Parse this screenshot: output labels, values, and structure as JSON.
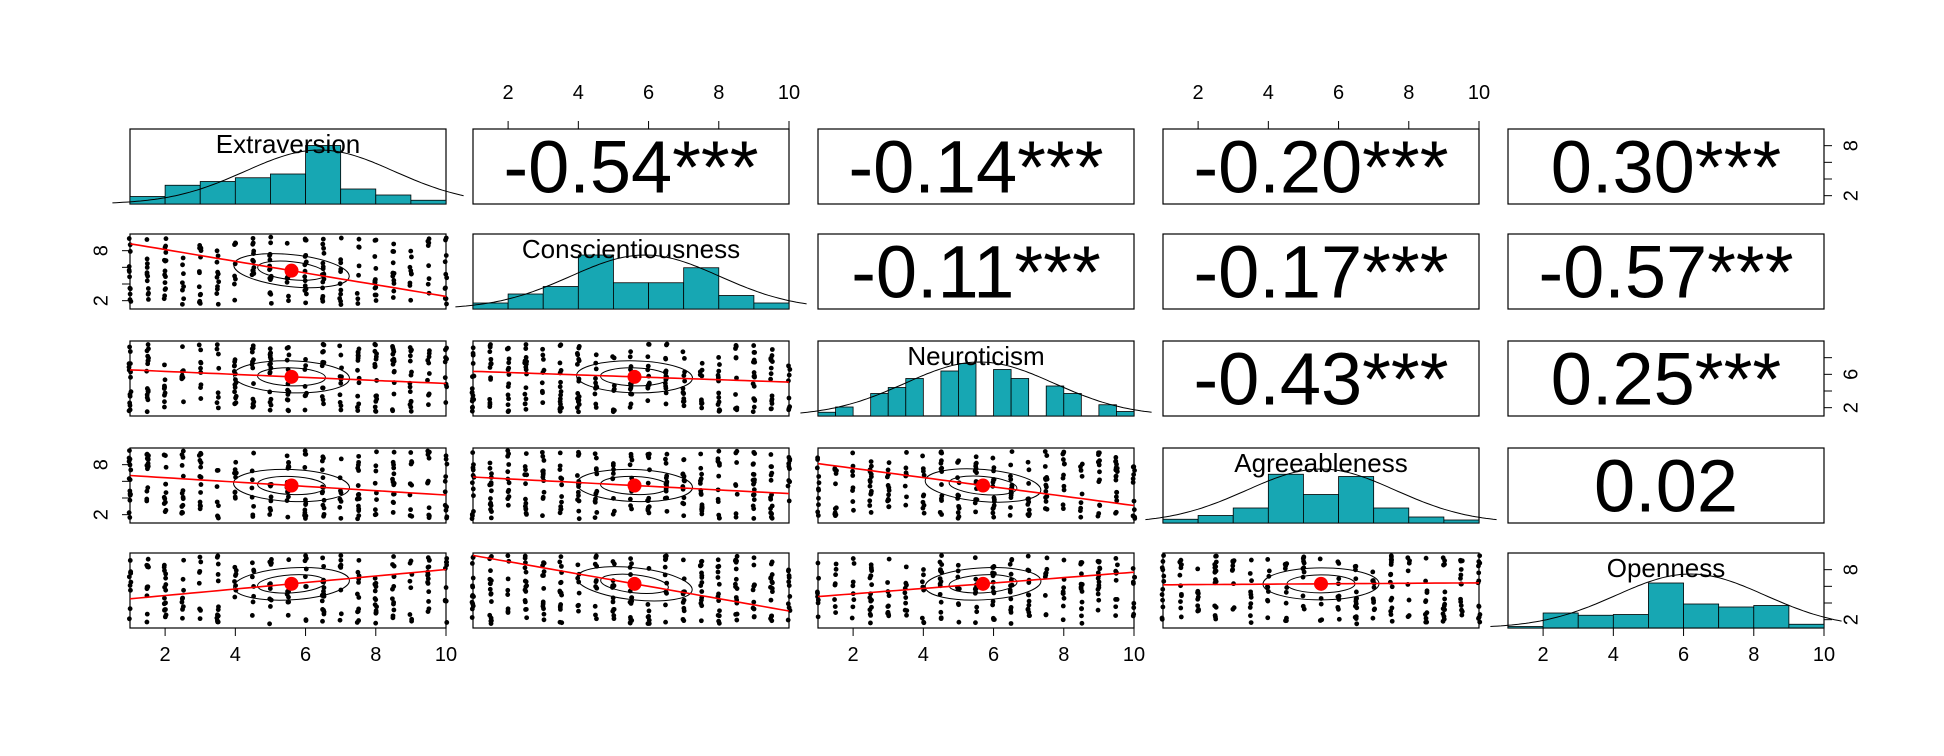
{
  "chart_data": {
    "type": "scatter",
    "variables": [
      "Extraversion",
      "Conscientiousness",
      "Neuroticism",
      "Agreeableness",
      "Openness"
    ],
    "axis_range": [
      1,
      10
    ],
    "axis_ticks": [
      2,
      4,
      6,
      8,
      10
    ],
    "histogram_ticks": {
      "Extraversion": [
        "2",
        "8"
      ],
      "Conscientiousness": [
        "2",
        "8"
      ],
      "Neuroticism": [
        "2",
        "6"
      ],
      "Agreeableness": [
        "2",
        "8"
      ],
      "Openness": [
        "2",
        "8"
      ]
    },
    "correlations": [
      {
        "row": 0,
        "col": 1,
        "label": "-0.54***",
        "r": -0.54
      },
      {
        "row": 0,
        "col": 2,
        "label": "-0.14***",
        "r": -0.14
      },
      {
        "row": 0,
        "col": 3,
        "label": "-0.20***",
        "r": -0.2
      },
      {
        "row": 0,
        "col": 4,
        "label": "0.30***",
        "r": 0.3
      },
      {
        "row": 1,
        "col": 2,
        "label": "-0.11***",
        "r": -0.11
      },
      {
        "row": 1,
        "col": 3,
        "label": "-0.17***",
        "r": -0.17
      },
      {
        "row": 1,
        "col": 4,
        "label": "-0.57***",
        "r": -0.57
      },
      {
        "row": 2,
        "col": 3,
        "label": "-0.43***",
        "r": -0.43
      },
      {
        "row": 2,
        "col": 4,
        "label": "0.25***",
        "r": 0.25
      },
      {
        "row": 3,
        "col": 4,
        "label": "0.02",
        "r": 0.02
      }
    ],
    "histograms": {
      "Extraversion": {
        "breaks": [
          1,
          2,
          3,
          4,
          5,
          6,
          7,
          8,
          9,
          10
        ],
        "heights": [
          0.1,
          0.25,
          0.3,
          0.35,
          0.4,
          0.78,
          0.2,
          0.12,
          0.05
        ]
      },
      "Conscientiousness": {
        "breaks": [
          1,
          2,
          3,
          4,
          5,
          6,
          7,
          8,
          9,
          10
        ],
        "heights": [
          0.08,
          0.2,
          0.3,
          0.72,
          0.35,
          0.35,
          0.55,
          0.18,
          0.08
        ]
      },
      "Neuroticism": {
        "breaks": [
          1,
          1.5,
          2,
          2.5,
          3,
          3.5,
          4,
          4.5,
          5,
          5.5,
          6,
          6.5,
          7,
          7.5,
          8,
          8.5,
          9,
          9.5,
          10
        ],
        "heights": [
          0.05,
          0.12,
          0,
          0.3,
          0.38,
          0.5,
          0,
          0.6,
          0.7,
          0,
          0.62,
          0.5,
          0,
          0.4,
          0.3,
          0,
          0.15,
          0.06
        ]
      },
      "Agreeableness": {
        "breaks": [
          1,
          2,
          3,
          4,
          5,
          6,
          7,
          8,
          9,
          10
        ],
        "heights": [
          0.05,
          0.1,
          0.2,
          0.65,
          0.38,
          0.62,
          0.2,
          0.08,
          0.04
        ]
      },
      "Openness": {
        "breaks": [
          1,
          2,
          3,
          4,
          5,
          6,
          7,
          8,
          9,
          10
        ],
        "heights": [
          0.02,
          0.2,
          0.17,
          0.18,
          0.6,
          0.32,
          0.28,
          0.3,
          0.05
        ]
      }
    },
    "means": {
      "Extraversion": 5.6,
      "Conscientiousness": 5.6,
      "Neuroticism": 5.7,
      "Agreeableness": 5.5,
      "Openness": 6.3
    },
    "density_peak": {
      "Extraversion": 6.4,
      "Conscientiousness": 5.9,
      "Neuroticism": 5.6,
      "Agreeableness": 5.5,
      "Openness": 6.2
    },
    "hist_color": "#17A7B3",
    "point_color": "#000000",
    "fit_color": "#FF0000",
    "mean_color": "#FF0000"
  }
}
